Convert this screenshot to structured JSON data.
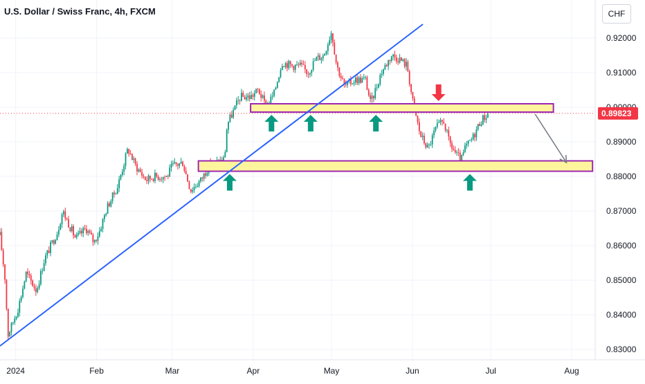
{
  "header": {
    "title": "U.S. Dollar / Swiss Franc, 4h, FXCM",
    "currency_button": "CHF"
  },
  "colors": {
    "up": "#089981",
    "down": "#f23645",
    "trendline": "#2962ff",
    "zone_fill": "#fff59d",
    "zone_border": "#9c27b0",
    "arrow_up": "#089981",
    "arrow_down": "#f23645",
    "projection": "#787b86",
    "price_tag": "#f23645"
  },
  "chart_data": {
    "type": "candlestick",
    "symbol": "USDCHF",
    "timeframe": "4h",
    "ylim": [
      0.827,
      0.931
    ],
    "y_ticks": [
      "0.83000",
      "0.84000",
      "0.85000",
      "0.86000",
      "0.87000",
      "0.88000",
      "0.89000",
      "0.90000",
      "0.91000",
      "0.92000"
    ],
    "x_range": [
      "2023-12-26",
      "2024-08-10"
    ],
    "x_ticks": [
      {
        "date": "2024-01-01",
        "label": "2024"
      },
      {
        "date": "2024-02-01",
        "label": "Feb"
      },
      {
        "date": "2024-03-01",
        "label": "Mar"
      },
      {
        "date": "2024-04-01",
        "label": "Apr"
      },
      {
        "date": "2024-05-01",
        "label": "May"
      },
      {
        "date": "2024-06-01",
        "label": "Jun"
      },
      {
        "date": "2024-07-01",
        "label": "Jul"
      },
      {
        "date": "2024-08-01",
        "label": "Aug"
      }
    ],
    "last_price": "0.89823",
    "price_path": [
      [
        "2023-12-26",
        0.863
      ],
      [
        "2023-12-28",
        0.85
      ],
      [
        "2023-12-29",
        0.834
      ],
      [
        "2024-01-02",
        0.842
      ],
      [
        "2024-01-05",
        0.852
      ],
      [
        "2024-01-09",
        0.847
      ],
      [
        "2024-01-12",
        0.856
      ],
      [
        "2024-01-17",
        0.864
      ],
      [
        "2024-01-19",
        0.87
      ],
      [
        "2024-01-24",
        0.862
      ],
      [
        "2024-01-28",
        0.865
      ],
      [
        "2024-01-31",
        0.861
      ],
      [
        "2024-02-02",
        0.864
      ],
      [
        "2024-02-05",
        0.871
      ],
      [
        "2024-02-09",
        0.877
      ],
      [
        "2024-02-13",
        0.888
      ],
      [
        "2024-02-16",
        0.883
      ],
      [
        "2024-02-20",
        0.879
      ],
      [
        "2024-02-23",
        0.88
      ],
      [
        "2024-02-28",
        0.88
      ],
      [
        "2024-03-01",
        0.883
      ],
      [
        "2024-03-05",
        0.884
      ],
      [
        "2024-03-08",
        0.876
      ],
      [
        "2024-03-12",
        0.879
      ],
      [
        "2024-03-15",
        0.883
      ],
      [
        "2024-03-18",
        0.884
      ],
      [
        "2024-03-21",
        0.885
      ],
      [
        "2024-03-22",
        0.895
      ],
      [
        "2024-03-27",
        0.903
      ],
      [
        "2024-03-31",
        0.903
      ],
      [
        "2024-04-03",
        0.905
      ],
      [
        "2024-04-06",
        0.9
      ],
      [
        "2024-04-09",
        0.904
      ],
      [
        "2024-04-12",
        0.913
      ],
      [
        "2024-04-16",
        0.912
      ],
      [
        "2024-04-19",
        0.912
      ],
      [
        "2024-04-22",
        0.91
      ],
      [
        "2024-04-25",
        0.914
      ],
      [
        "2024-04-28",
        0.915
      ],
      [
        "2024-05-01",
        0.922
      ],
      [
        "2024-05-03",
        0.912
      ],
      [
        "2024-05-06",
        0.906
      ],
      [
        "2024-05-10",
        0.908
      ],
      [
        "2024-05-14",
        0.908
      ],
      [
        "2024-05-16",
        0.901
      ],
      [
        "2024-05-20",
        0.91
      ],
      [
        "2024-05-24",
        0.915
      ],
      [
        "2024-05-27",
        0.914
      ],
      [
        "2024-05-30",
        0.912
      ],
      [
        "2024-06-01",
        0.902
      ],
      [
        "2024-06-04",
        0.892
      ],
      [
        "2024-06-07",
        0.888
      ],
      [
        "2024-06-10",
        0.894
      ],
      [
        "2024-06-13",
        0.896
      ],
      [
        "2024-06-15",
        0.89
      ],
      [
        "2024-06-18",
        0.886
      ],
      [
        "2024-06-20",
        0.885
      ],
      [
        "2024-06-21",
        0.888
      ],
      [
        "2024-06-24",
        0.891
      ],
      [
        "2024-06-27",
        0.896
      ],
      [
        "2024-06-30",
        0.8982
      ]
    ],
    "annotations": {
      "trendline": {
        "from": [
          "2023-12-26",
          0.831
        ],
        "to": [
          "2024-06-05",
          0.924
        ]
      },
      "zones": [
        {
          "name": "upper",
          "from": "2024-03-31",
          "to": "2024-07-25",
          "low": 0.8986,
          "high": 0.901
        },
        {
          "name": "lower",
          "from": "2024-03-11",
          "to": "2024-08-09",
          "low": 0.8815,
          "high": 0.8845
        }
      ],
      "up_arrows": [
        {
          "date": "2024-03-23",
          "price": 0.8815
        },
        {
          "date": "2024-04-08",
          "price": 0.8986
        },
        {
          "date": "2024-04-23",
          "price": 0.8986
        },
        {
          "date": "2024-05-18",
          "price": 0.8986
        },
        {
          "date": "2024-06-23",
          "price": 0.8815
        }
      ],
      "down_arrows": [
        {
          "date": "2024-06-11",
          "price": 0.901
        }
      ],
      "projection_path": [
        [
          "2024-07-18",
          0.898
        ],
        [
          "2024-07-30",
          0.884
        ]
      ]
    }
  }
}
